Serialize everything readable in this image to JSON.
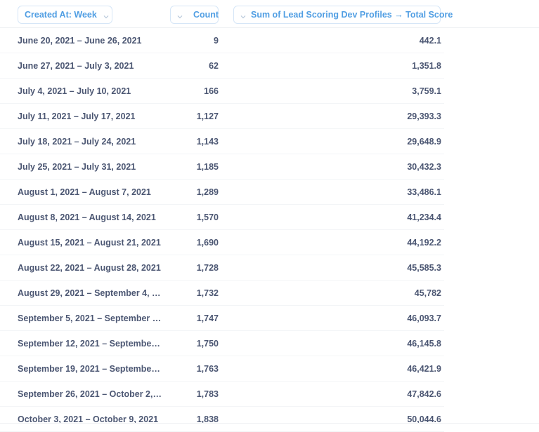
{
  "columns": {
    "created_at": "Created At: Week",
    "count": "Count",
    "sum": "Sum of Lead Scoring Dev Profiles → Total Score"
  },
  "rows": [
    {
      "week": "June 20, 2021 – June 26, 2021",
      "count": "9",
      "score": "442.1"
    },
    {
      "week": "June 27, 2021 – July 3, 2021",
      "count": "62",
      "score": "1,351.8"
    },
    {
      "week": "July 4, 2021 – July 10, 2021",
      "count": "166",
      "score": "3,759.1"
    },
    {
      "week": "July 11, 2021 – July 17, 2021",
      "count": "1,127",
      "score": "29,393.3"
    },
    {
      "week": "July 18, 2021 – July 24, 2021",
      "count": "1,143",
      "score": "29,648.9"
    },
    {
      "week": "July 25, 2021 – July 31, 2021",
      "count": "1,185",
      "score": "30,432.3"
    },
    {
      "week": "August 1, 2021 – August 7, 2021",
      "count": "1,289",
      "score": "33,486.1"
    },
    {
      "week": "August 8, 2021 – August 14, 2021",
      "count": "1,570",
      "score": "41,234.4"
    },
    {
      "week": "August 15, 2021 – August 21, 2021",
      "count": "1,690",
      "score": "44,192.2"
    },
    {
      "week": "August 22, 2021 – August 28, 2021",
      "count": "1,728",
      "score": "45,585.3"
    },
    {
      "week": "August 29, 2021 – September 4, …",
      "count": "1,732",
      "score": "45,782"
    },
    {
      "week": "September 5, 2021 – September …",
      "count": "1,747",
      "score": "46,093.7"
    },
    {
      "week": "September 12, 2021 – Septembe…",
      "count": "1,750",
      "score": "46,145.8"
    },
    {
      "week": "September 19, 2021 – Septembe…",
      "count": "1,763",
      "score": "46,421.9"
    },
    {
      "week": "September 26, 2021 – October 2,…",
      "count": "1,783",
      "score": "47,842.6"
    },
    {
      "week": "October 3, 2021 – October 9, 2021",
      "count": "1,838",
      "score": "50,044.6"
    }
  ]
}
